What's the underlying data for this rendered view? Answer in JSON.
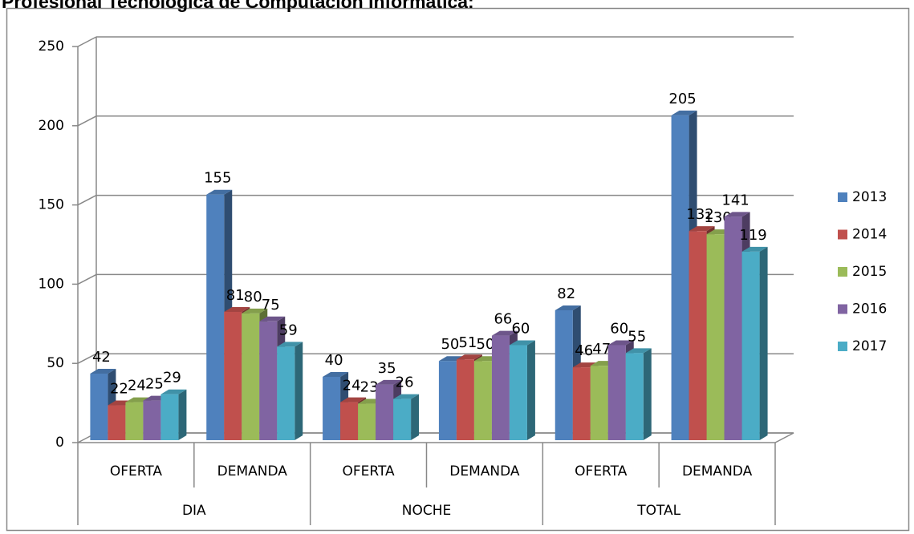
{
  "chart_data": {
    "type": "bar3d",
    "title": "Profesional Tecnológica de Computación Informática:",
    "categories": [
      "OFERTA",
      "DEMANDA",
      "OFERTA",
      "DEMANDA",
      "OFERTA",
      "DEMANDA"
    ],
    "groups": [
      "DIA",
      "NOCHE",
      "TOTAL"
    ],
    "series": [
      {
        "name": "2013",
        "color": "#4f81bd",
        "values": [
          42,
          155,
          40,
          50,
          82,
          205
        ]
      },
      {
        "name": "2014",
        "color": "#c0504d",
        "values": [
          22,
          81,
          24,
          51,
          46,
          132
        ]
      },
      {
        "name": "2015",
        "color": "#9bbb59",
        "values": [
          24,
          80,
          23,
          50,
          47,
          130
        ]
      },
      {
        "name": "2016",
        "color": "#8064a2",
        "values": [
          25,
          75,
          35,
          66,
          60,
          141
        ]
      },
      {
        "name": "2017",
        "color": "#4bacc6",
        "values": [
          29,
          59,
          26,
          60,
          55,
          119
        ]
      }
    ],
    "ylim": [
      0,
      250
    ],
    "yticks": [
      0,
      50,
      100,
      150,
      200,
      250
    ],
    "grid": true,
    "legend": "right"
  }
}
